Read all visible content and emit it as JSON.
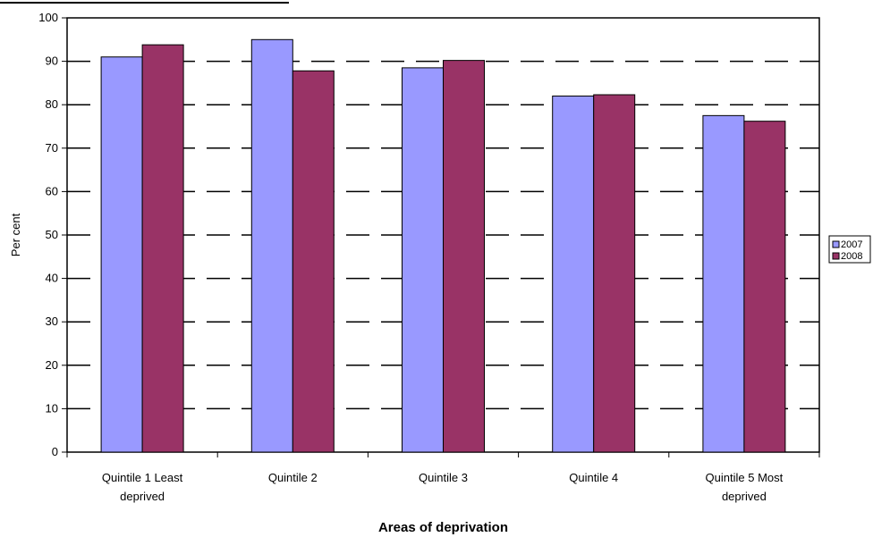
{
  "chart_data": {
    "type": "bar",
    "title": "",
    "xlabel": "Areas of deprivation",
    "ylabel": "Per cent",
    "categories": [
      [
        "Quintile 1 Least",
        "deprived"
      ],
      [
        "Quintile 2"
      ],
      [
        "Quintile 3"
      ],
      [
        "Quintile 4"
      ],
      [
        "Quintile 5 Most",
        "deprived"
      ]
    ],
    "series": [
      {
        "name": "2007",
        "color": "#9999FF",
        "values": [
          91,
          95,
          88.5,
          82,
          77.5
        ]
      },
      {
        "name": "2008",
        "color": "#993366",
        "values": [
          93.8,
          87.8,
          90.2,
          82.3,
          76.2
        ]
      }
    ],
    "ylim": [
      0,
      100
    ],
    "yticks": [
      0,
      10,
      20,
      30,
      40,
      50,
      60,
      70,
      80,
      90,
      100
    ],
    "grid": "dashed horizontal",
    "legend_position": "right"
  }
}
